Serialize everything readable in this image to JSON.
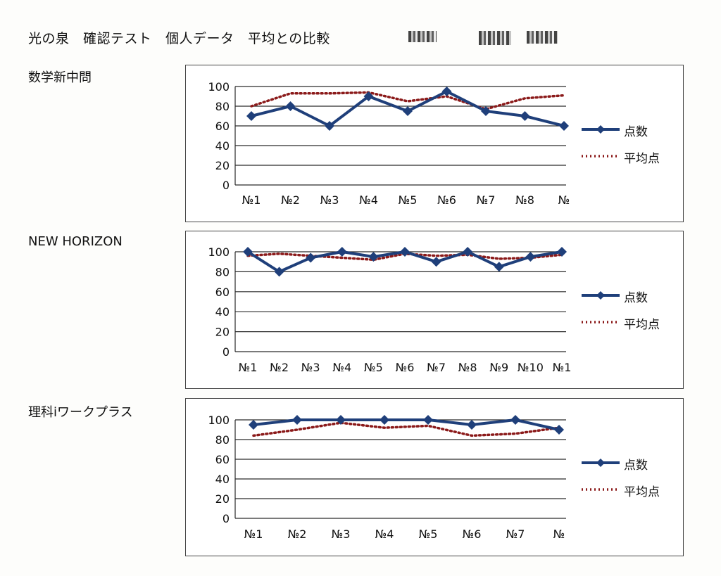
{
  "header": {
    "title": "光の泉　確認テスト　個人データ　平均との比較"
  },
  "colors": {
    "score_line": "#1f3f7a",
    "average_line": "#8b1a1a",
    "grid": "#2a2a2a"
  },
  "legend": {
    "score_label": "点数",
    "average_label": "平均点"
  },
  "chart_data": [
    {
      "type": "line",
      "title": "数学新中問",
      "categories": [
        "№1",
        "№2",
        "№3",
        "№4",
        "№5",
        "№6",
        "№7",
        "№8",
        "№"
      ],
      "ylim": [
        0,
        100
      ],
      "yticks": [
        0,
        20,
        40,
        60,
        80,
        100
      ],
      "grid": true,
      "legend": "right",
      "series": [
        {
          "name": "点数",
          "values": [
            70,
            80,
            60,
            90,
            75,
            95,
            75,
            70,
            60
          ]
        },
        {
          "name": "平均点",
          "values": [
            80,
            93,
            93,
            94,
            85,
            90,
            77,
            88,
            91
          ]
        }
      ]
    },
    {
      "type": "line",
      "title": "NEW HORIZON",
      "categories": [
        "№1",
        "№2",
        "№3",
        "№4",
        "№5",
        "№6",
        "№7",
        "№8",
        "№9",
        "№10",
        "№1"
      ],
      "ylim": [
        0,
        100
      ],
      "yticks": [
        0,
        20,
        40,
        60,
        80,
        100
      ],
      "grid": true,
      "legend": "right",
      "series": [
        {
          "name": "点数",
          "values": [
            100,
            80,
            94,
            100,
            95,
            100,
            90,
            100,
            85,
            95,
            100
          ]
        },
        {
          "name": "平均点",
          "values": [
            96,
            98,
            96,
            94,
            92,
            98,
            96,
            97,
            93,
            94,
            97
          ]
        }
      ]
    },
    {
      "type": "line",
      "title": "理科iワークプラス",
      "categories": [
        "№1",
        "№2",
        "№3",
        "№4",
        "№5",
        "№6",
        "№7",
        "№"
      ],
      "ylim": [
        0,
        100
      ],
      "yticks": [
        0,
        20,
        40,
        60,
        80,
        100
      ],
      "grid": true,
      "legend": "right",
      "series": [
        {
          "name": "点数",
          "values": [
            95,
            100,
            100,
            100,
            100,
            95,
            100,
            90
          ]
        },
        {
          "name": "平均点",
          "values": [
            84,
            90,
            97,
            92,
            94,
            84,
            86,
            92
          ]
        }
      ]
    }
  ]
}
